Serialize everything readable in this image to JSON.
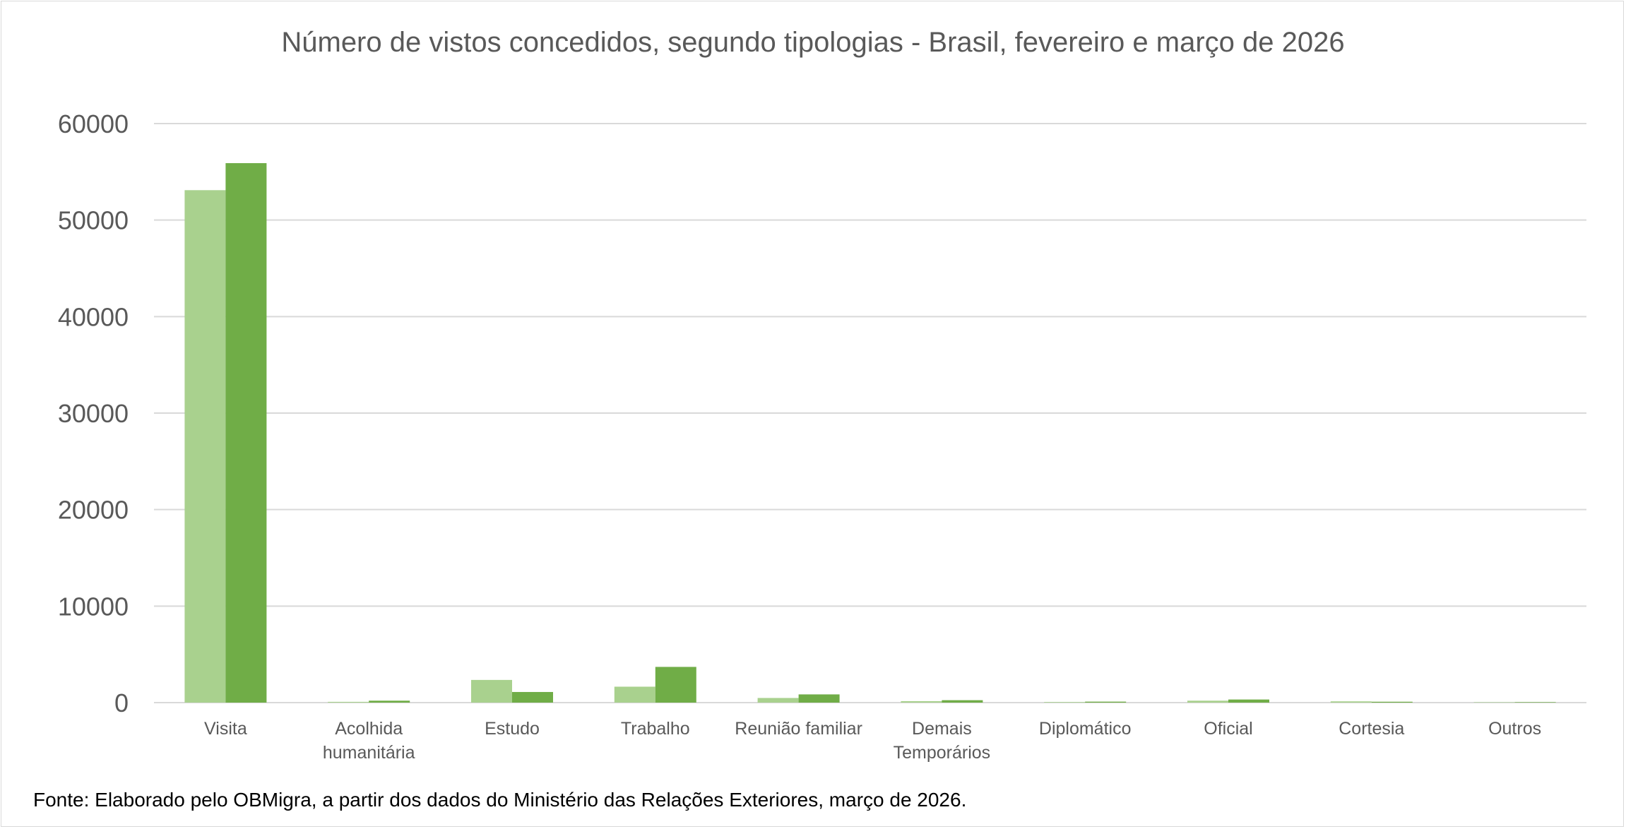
{
  "title": "Número de vistos concedidos, segundo tipologias - Brasil, fevereiro e março de 2026",
  "source": "Fonte: Elaborado pelo OBMigra, a partir dos dados do Ministério das Relações Exteriores, março de 2026.",
  "colors": {
    "series_1": "#a9d18e",
    "series_2": "#70ad47",
    "grid": "#d9d9d9",
    "text": "#595959"
  },
  "chart_data": {
    "type": "bar",
    "title": "Número de vistos concedidos, segundo tipologias - Brasil, fevereiro e março de 2026",
    "xlabel": "",
    "ylabel": "",
    "ylim": [
      0,
      60000
    ],
    "yticks": [
      "0",
      "10000",
      "20000",
      "30000",
      "40000",
      "50000",
      "60000"
    ],
    "grid": true,
    "legend": "none",
    "categories": [
      [
        "Visita"
      ],
      [
        "Acolhida",
        "humanitária"
      ],
      [
        "Estudo"
      ],
      [
        "Trabalho"
      ],
      [
        "Reunião familiar"
      ],
      [
        "Demais",
        "Temporários"
      ],
      [
        "Diplomático"
      ],
      [
        "Oficial"
      ],
      [
        "Cortesia"
      ],
      [
        "Outros"
      ]
    ],
    "series": [
      {
        "values": [
          53100,
          80,
          2350,
          1650,
          480,
          150,
          60,
          200,
          130,
          40
        ]
      },
      {
        "values": [
          55900,
          200,
          1100,
          3700,
          850,
          250,
          100,
          320,
          90,
          50
        ]
      }
    ]
  }
}
